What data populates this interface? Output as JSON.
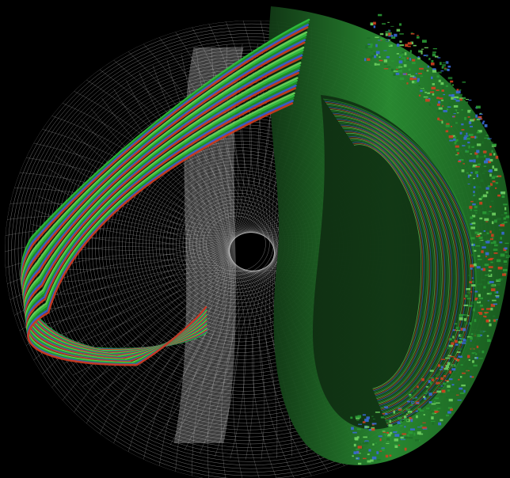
{
  "scene": {
    "background_color": "#000000",
    "mesh_color": "#e8e8e8",
    "ribbon_colors": [
      "#2fbf3f",
      "#1f8f2a",
      "#3a5fd0",
      "#c83a1e",
      "#0b1a0b",
      "#6ad35a"
    ],
    "cross_section_colors": [
      "#2a9a35",
      "#1d6f27",
      "#3a6ad8",
      "#d0401f",
      "#6fd060"
    ]
  },
  "icons": {
    "visual": "torus-wireframe-with-field-line-ribbons"
  }
}
